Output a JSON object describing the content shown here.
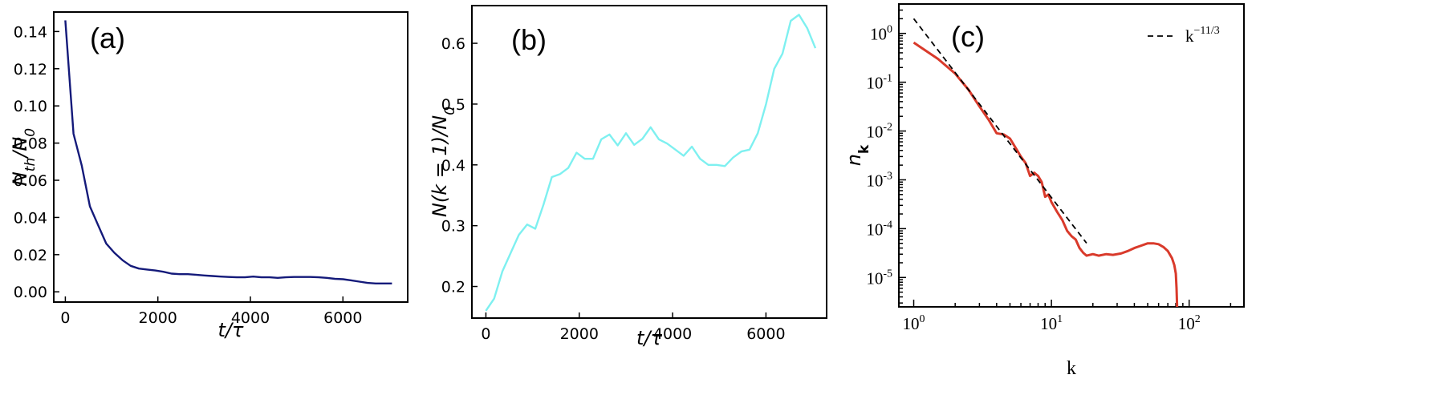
{
  "chart_data": [
    {
      "type": "line",
      "panel_label": "(a)",
      "xlabel": "t/τ",
      "ylabel": "N_th/N_0",
      "xlim": [
        -250,
        7400
      ],
      "ylim": [
        -0.0055,
        0.1505
      ],
      "xticks": [
        0,
        2000,
        4000,
        6000
      ],
      "xticklabels": [
        "0",
        "2000",
        "4000",
        "6000"
      ],
      "yticks": [
        0.0,
        0.02,
        0.04,
        0.06,
        0.08,
        0.1,
        0.12,
        0.14
      ],
      "yticklabels": [
        "0.00",
        "0.02",
        "0.04",
        "0.06",
        "0.08",
        "0.10",
        "0.12",
        "0.14"
      ],
      "grid": false,
      "series": [
        {
          "color": "#141a7a",
          "x": [
            0,
            177,
            353,
            530,
            706,
            883,
            1059,
            1236,
            1412,
            1589,
            1765,
            1942,
            2118,
            2295,
            2471,
            2648,
            2824,
            3001,
            3177,
            3354,
            3530,
            3707,
            3883,
            4060,
            4236,
            4413,
            4589,
            4766,
            4942,
            5119,
            5295,
            5472,
            5648,
            5825,
            6001,
            6178,
            6354,
            6531,
            6707,
            6884,
            7060
          ],
          "y": [
            0.146,
            0.085,
            0.068,
            0.046,
            0.036,
            0.026,
            0.021,
            0.017,
            0.014,
            0.0125,
            0.012,
            0.0115,
            0.0108,
            0.0098,
            0.0095,
            0.0095,
            0.0092,
            0.0088,
            0.0085,
            0.0082,
            0.008,
            0.0078,
            0.0078,
            0.0082,
            0.0078,
            0.0078,
            0.0075,
            0.0078,
            0.008,
            0.008,
            0.008,
            0.0078,
            0.0075,
            0.007,
            0.0068,
            0.0062,
            0.0055,
            0.0048,
            0.0045,
            0.0045,
            0.0045
          ]
        }
      ]
    },
    {
      "type": "line",
      "panel_label": "(b)",
      "xlabel": "t/τ",
      "ylabel": "N(k = 1)/N_0",
      "xlim": [
        -300,
        7300
      ],
      "ylim": [
        0.148,
        0.662
      ],
      "xticks": [
        0,
        2000,
        4000,
        6000
      ],
      "xticklabels": [
        "0",
        "2000",
        "4000",
        "6000"
      ],
      "yticks": [
        0.2,
        0.3,
        0.4,
        0.5,
        0.6
      ],
      "yticklabels": [
        "0.2",
        "0.3",
        "0.4",
        "0.5",
        "0.6"
      ],
      "grid": false,
      "series": [
        {
          "color": "#7ef0f0",
          "x": [
            0,
            177,
            353,
            530,
            706,
            883,
            1059,
            1236,
            1412,
            1589,
            1765,
            1942,
            2118,
            2295,
            2471,
            2648,
            2824,
            3001,
            3177,
            3354,
            3530,
            3707,
            3883,
            4060,
            4236,
            4413,
            4589,
            4766,
            4942,
            5119,
            5295,
            5472,
            5648,
            5825,
            6001,
            6178,
            6354,
            6531,
            6707,
            6884,
            7060
          ],
          "y": [
            0.16,
            0.18,
            0.225,
            0.255,
            0.285,
            0.302,
            0.295,
            0.335,
            0.38,
            0.385,
            0.395,
            0.42,
            0.41,
            0.41,
            0.442,
            0.45,
            0.432,
            0.452,
            0.433,
            0.443,
            0.462,
            0.442,
            0.435,
            0.425,
            0.415,
            0.43,
            0.41,
            0.4,
            0.4,
            0.398,
            0.412,
            0.422,
            0.425,
            0.452,
            0.5,
            0.558,
            0.583,
            0.637,
            0.647,
            0.625,
            0.592
          ]
        }
      ]
    },
    {
      "type": "line",
      "panel_label": "(c)",
      "xlabel": "k",
      "ylabel": "n_k",
      "xscale": "log",
      "yscale": "log",
      "xlim": [
        0.78,
        250
      ],
      "ylim": [
        2.5e-06,
        4
      ],
      "xticks": [
        1,
        10,
        100
      ],
      "xticklabels": [
        "10^0",
        "10^1",
        "10^2"
      ],
      "yticks": [
        1e-05,
        0.0001,
        0.001,
        0.01,
        0.1,
        1
      ],
      "yticklabels": [
        "10^-5",
        "10^-4",
        "10^-3",
        "10^-2",
        "10^-1",
        "10^0"
      ],
      "grid": false,
      "legend_position": "top-right",
      "legend": [
        {
          "label": "k^-11/3",
          "style": "dashed",
          "color": "#000000"
        }
      ],
      "series": [
        {
          "color": "#d93a2b",
          "x": [
            1,
            1.5,
            2,
            2.5,
            3,
            3.5,
            4,
            4.5,
            5,
            5.5,
            6,
            6.5,
            7,
            7.5,
            8,
            8.5,
            9,
            9.5,
            10,
            11,
            12,
            13,
            14,
            15,
            16,
            17,
            18,
            20,
            22,
            25,
            28,
            32,
            36,
            40,
            45,
            50,
            55,
            60,
            65,
            70,
            75,
            78,
            80,
            81,
            82
          ],
          "y": [
            0.65,
            0.3,
            0.15,
            0.07,
            0.032,
            0.017,
            0.009,
            0.0085,
            0.007,
            0.0045,
            0.003,
            0.0022,
            0.0012,
            0.0014,
            0.0012,
            0.0009,
            0.00045,
            0.0005,
            0.00035,
            0.00022,
            0.00015,
            9e-05,
            7e-05,
            6e-05,
            4e-05,
            3.2e-05,
            2.8e-05,
            3e-05,
            2.8e-05,
            3e-05,
            2.9e-05,
            3.1e-05,
            3.5e-05,
            4e-05,
            4.5e-05,
            5e-05,
            5e-05,
            4.8e-05,
            4.2e-05,
            3.5e-05,
            2.5e-05,
            1.8e-05,
            1.2e-05,
            6e-06,
            2e-06
          ]
        },
        {
          "color": "#000000",
          "style": "dashed",
          "x": [
            1,
            18
          ],
          "y": [
            2.0,
            5.05e-05
          ]
        }
      ]
    }
  ]
}
